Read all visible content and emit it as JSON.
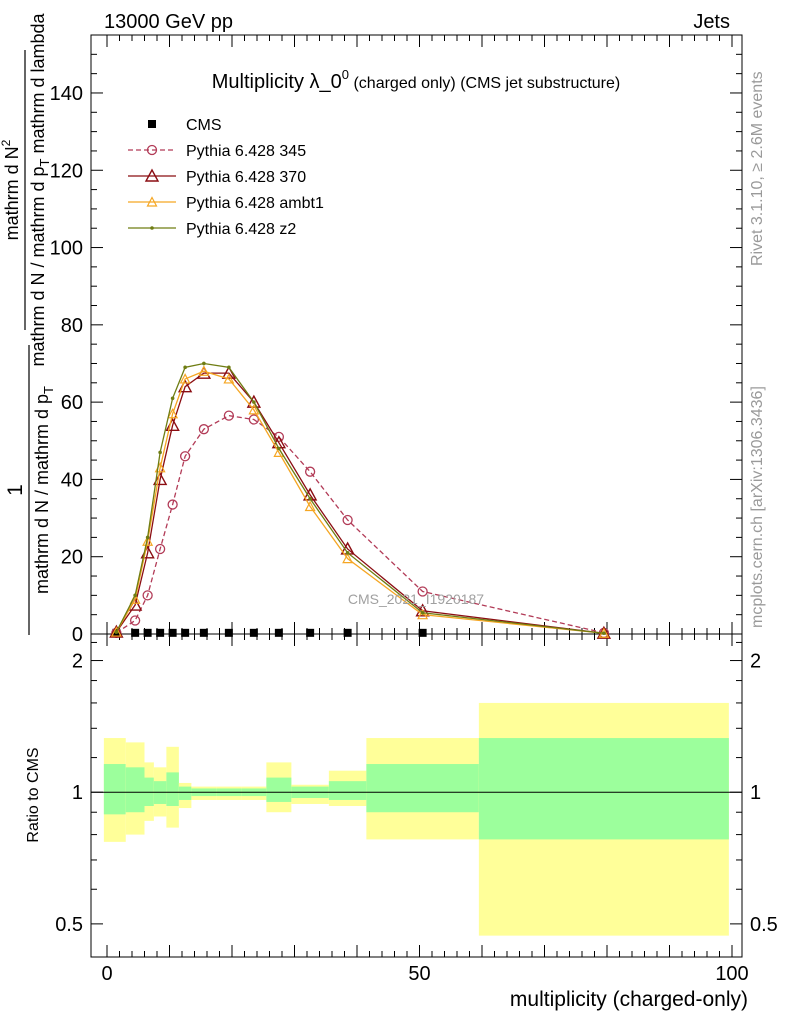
{
  "header": {
    "left": "13000 GeV pp",
    "right": "Jets"
  },
  "title": {
    "main": "Multiplicity λ_0",
    "sup": "0",
    "sub": " (charged only) (CMS jet substructure)"
  },
  "side": {
    "top": "Rivet 3.1.10, ≥ 2.6M events",
    "bottom": "mcplots.cern.ch [arXiv:1306.3436]"
  },
  "watermark": "CMS_2021_I1920187",
  "ylabel": {
    "one": "1",
    "num": "mathrm d N",
    "num_sup": "2",
    "den_a": "mathrm d N / mathrm d p",
    "den_a_sub": "T",
    "den_b": " mathrm d N / mathrm d p",
    "den_b_sub": "T",
    "den_c": " mathrm d lambda"
  },
  "ratio_ylabel": "Ratio to CMS",
  "xlabel": "multiplicity (charged-only)",
  "colors": {
    "cms": "#000000",
    "p345": "#b23b57",
    "p370": "#8b0d12",
    "ambt1": "#f5a623",
    "z2": "#6f7d13",
    "band_green": "#9cff9c",
    "band_yellow": "#ffff99"
  },
  "chart_data": {
    "type": "line",
    "xlim": [
      -4,
      100
    ],
    "ylim": [
      0,
      155
    ],
    "ratio_ylim": [
      0.42,
      2.3
    ],
    "x_ticks": [
      0,
      50,
      100
    ],
    "y_ticks": [
      0,
      20,
      40,
      60,
      80,
      100,
      120,
      140
    ],
    "ratio_ticks": [
      0.5,
      1,
      2
    ],
    "legend_position": "top-left",
    "x": [
      1.5,
      4.5,
      6.5,
      8.5,
      10.5,
      12.5,
      15.5,
      19.5,
      23.5,
      27.5,
      32.5,
      38.5,
      50.5,
      79.5
    ],
    "series": [
      {
        "name": "CMS",
        "key": "cms",
        "marker": "square",
        "values": [
          0.3,
          0.3,
          0.3,
          0.3,
          0.3,
          0.3,
          0.3,
          0.3,
          0.3,
          0.3,
          0.3,
          0.3,
          0.3,
          0.0
        ]
      },
      {
        "name": "Pythia 6.428 345",
        "key": "p345",
        "marker": "circle",
        "dashed": true,
        "values": [
          0.3,
          3.5,
          10,
          22,
          33.5,
          46,
          53,
          56.5,
          55.5,
          51,
          42,
          29.5,
          11,
          0.3
        ]
      },
      {
        "name": "Pythia 6.428 370",
        "key": "p370",
        "marker": "triangle",
        "values": [
          0.5,
          7.5,
          21,
          40,
          54,
          64,
          67.5,
          67.5,
          60,
          49.5,
          36,
          22,
          6,
          0.2
        ]
      },
      {
        "name": "Pythia 6.428 ambt1",
        "key": "ambt1",
        "marker": "triangle-small",
        "values": [
          0.5,
          9,
          24,
          43,
          57,
          66,
          68,
          66,
          58,
          47,
          33,
          19.5,
          5,
          0.2
        ]
      },
      {
        "name": "Pythia 6.428 z2",
        "key": "z2",
        "marker": "dot",
        "values": [
          0.5,
          10,
          25,
          47,
          61,
          69,
          70,
          69,
          60,
          48,
          35,
          21,
          5.5,
          0.2
        ]
      }
    ],
    "ratio_band_edges": [
      -0.5,
      3,
      6,
      7.5,
      9.5,
      11.5,
      13.5,
      17.5,
      21.5,
      25.5,
      29.5,
      35.5,
      41.5,
      59.5,
      99.5
    ],
    "ratio_band_green": [
      [
        0.89,
        1.16
      ],
      [
        0.9,
        1.14
      ],
      [
        0.93,
        1.08
      ],
      [
        0.94,
        1.06
      ],
      [
        0.93,
        1.11
      ],
      [
        0.96,
        1.03
      ],
      [
        0.98,
        1.02
      ],
      [
        0.98,
        1.02
      ],
      [
        0.98,
        1.02
      ],
      [
        0.95,
        1.08
      ],
      [
        0.97,
        1.03
      ],
      [
        0.96,
        1.06
      ],
      [
        0.9,
        1.16
      ],
      [
        0.78,
        1.33
      ]
    ],
    "ratio_band_yellow": [
      [
        0.77,
        1.33
      ],
      [
        0.8,
        1.3
      ],
      [
        0.86,
        1.17
      ],
      [
        0.88,
        1.14
      ],
      [
        0.83,
        1.27
      ],
      [
        0.92,
        1.05
      ],
      [
        0.96,
        1.03
      ],
      [
        0.96,
        1.03
      ],
      [
        0.96,
        1.03
      ],
      [
        0.9,
        1.17
      ],
      [
        0.94,
        1.04
      ],
      [
        0.93,
        1.12
      ],
      [
        0.78,
        1.33
      ],
      [
        0.47,
        1.6
      ]
    ]
  }
}
